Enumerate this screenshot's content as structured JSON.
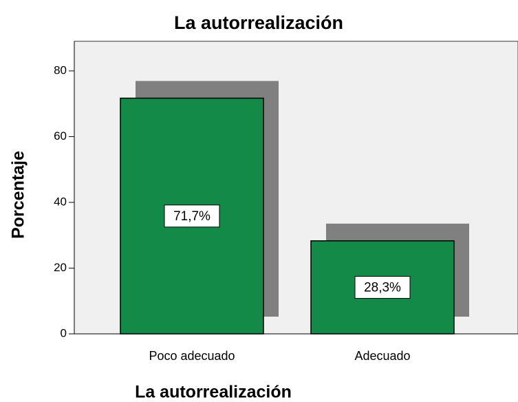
{
  "chart_data": {
    "type": "bar",
    "title": "La autorrealización",
    "x_label": "La autorrealización",
    "y_label": "Porcentaje",
    "categories": [
      "Poco adecuado",
      "Adecuado"
    ],
    "values": [
      71.7,
      28.3
    ],
    "value_labels": [
      "71,7%",
      "28,3%"
    ],
    "color": "#138a48",
    "shadow_color": "#808080",
    "ylim": [
      0,
      89
    ],
    "yticks": [
      0,
      20,
      40,
      60,
      80
    ],
    "grid": false
  }
}
